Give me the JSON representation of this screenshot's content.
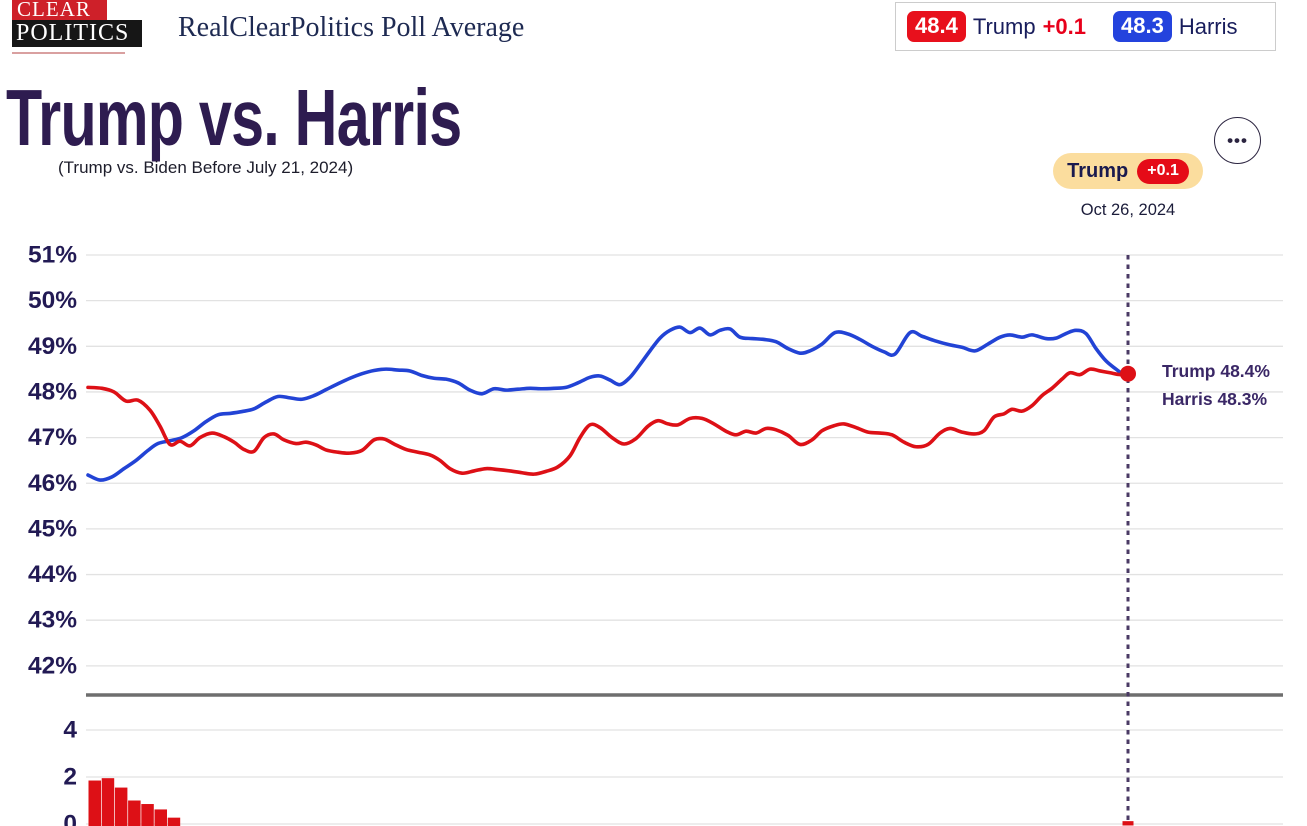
{
  "header": {
    "logo": {
      "line1": "CLEAR",
      "line2": "POLITICS"
    },
    "title": "RealClearPolitics Poll Average",
    "legend": {
      "trump": {
        "value": "48.4",
        "label": "Trump",
        "change": "+0.1"
      },
      "harris": {
        "value": "48.3",
        "label": "Harris"
      }
    }
  },
  "page": {
    "title": "Trump vs. Harris",
    "subtitle": "(Trump vs. Biden Before July 21, 2024)",
    "leader_badge": {
      "label": "Trump",
      "change": "+0.1"
    },
    "date": "Oct 26, 2024",
    "menu_icon": "•••"
  },
  "colors": {
    "trump_red": "#dd1016",
    "harris_blue": "#2243d5",
    "badge_red": "#e8101c",
    "badge_blue": "#2443dd",
    "axis_label": "#221a54",
    "gridline": "#e2e2e2",
    "separator": "#6e6e6e",
    "dotted_line": "#4a3a64",
    "leader_badge_bg": "#fbdd9e"
  },
  "chart_data": {
    "type": "line",
    "title": "Trump vs. Harris",
    "subtitle": "(Trump vs. Biden Before July 21, 2024)",
    "date_label": "Oct 26, 2024",
    "y_axis": {
      "ticks": [
        51,
        50,
        49,
        48,
        47,
        46,
        45,
        44,
        43,
        42
      ],
      "unit": "%"
    },
    "x_axis": {
      "tick_labels_visible": false
    },
    "grid": true,
    "legend_position": "top-right",
    "current_values": {
      "trump": 48.4,
      "harris": 48.3,
      "spread": "+0.1"
    },
    "end_labels": [
      {
        "text": "Trump 48.4%"
      },
      {
        "text": "Harris 48.3%"
      }
    ],
    "series": [
      {
        "name": "Harris",
        "color": "#2243d5",
        "end_value": 48.3,
        "points": [
          [
            88,
            46.18
          ],
          [
            100,
            46.07
          ],
          [
            112,
            46.14
          ],
          [
            124,
            46.32
          ],
          [
            136,
            46.5
          ],
          [
            148,
            46.72
          ],
          [
            158,
            46.87
          ],
          [
            170,
            46.93
          ],
          [
            182,
            47.0
          ],
          [
            194,
            47.15
          ],
          [
            206,
            47.35
          ],
          [
            218,
            47.5
          ],
          [
            230,
            47.53
          ],
          [
            242,
            47.57
          ],
          [
            254,
            47.63
          ],
          [
            266,
            47.78
          ],
          [
            278,
            47.9
          ],
          [
            290,
            47.87
          ],
          [
            302,
            47.84
          ],
          [
            314,
            47.92
          ],
          [
            326,
            48.05
          ],
          [
            338,
            48.18
          ],
          [
            350,
            48.3
          ],
          [
            362,
            48.4
          ],
          [
            374,
            48.47
          ],
          [
            386,
            48.5
          ],
          [
            398,
            48.48
          ],
          [
            410,
            48.46
          ],
          [
            422,
            48.36
          ],
          [
            434,
            48.3
          ],
          [
            446,
            48.28
          ],
          [
            458,
            48.2
          ],
          [
            470,
            48.04
          ],
          [
            482,
            47.96
          ],
          [
            494,
            48.07
          ],
          [
            506,
            48.04
          ],
          [
            518,
            48.06
          ],
          [
            530,
            48.08
          ],
          [
            542,
            48.07
          ],
          [
            554,
            48.08
          ],
          [
            566,
            48.1
          ],
          [
            578,
            48.2
          ],
          [
            590,
            48.32
          ],
          [
            600,
            48.35
          ],
          [
            610,
            48.26
          ],
          [
            620,
            48.16
          ],
          [
            630,
            48.32
          ],
          [
            640,
            48.6
          ],
          [
            650,
            48.9
          ],
          [
            660,
            49.18
          ],
          [
            670,
            49.35
          ],
          [
            680,
            49.42
          ],
          [
            690,
            49.3
          ],
          [
            700,
            49.4
          ],
          [
            710,
            49.25
          ],
          [
            720,
            49.35
          ],
          [
            730,
            49.38
          ],
          [
            740,
            49.2
          ],
          [
            752,
            49.17
          ],
          [
            764,
            49.15
          ],
          [
            776,
            49.1
          ],
          [
            788,
            48.95
          ],
          [
            800,
            48.85
          ],
          [
            810,
            48.9
          ],
          [
            822,
            49.05
          ],
          [
            835,
            49.3
          ],
          [
            848,
            49.27
          ],
          [
            860,
            49.15
          ],
          [
            872,
            49.0
          ],
          [
            884,
            48.88
          ],
          [
            895,
            48.83
          ],
          [
            910,
            49.3
          ],
          [
            922,
            49.22
          ],
          [
            935,
            49.12
          ],
          [
            950,
            49.03
          ],
          [
            962,
            48.98
          ],
          [
            975,
            48.9
          ],
          [
            988,
            49.05
          ],
          [
            1000,
            49.2
          ],
          [
            1010,
            49.25
          ],
          [
            1022,
            49.2
          ],
          [
            1032,
            49.25
          ],
          [
            1046,
            49.17
          ],
          [
            1056,
            49.18
          ],
          [
            1066,
            49.28
          ],
          [
            1076,
            49.35
          ],
          [
            1086,
            49.28
          ],
          [
            1096,
            48.95
          ],
          [
            1106,
            48.68
          ],
          [
            1116,
            48.5
          ],
          [
            1128,
            48.3
          ]
        ]
      },
      {
        "name": "Trump",
        "color": "#dd1016",
        "end_value": 48.4,
        "points": [
          [
            88,
            48.1
          ],
          [
            102,
            48.08
          ],
          [
            114,
            48.0
          ],
          [
            126,
            47.8
          ],
          [
            138,
            47.82
          ],
          [
            150,
            47.6
          ],
          [
            160,
            47.25
          ],
          [
            170,
            46.85
          ],
          [
            180,
            46.92
          ],
          [
            190,
            46.82
          ],
          [
            200,
            47.0
          ],
          [
            212,
            47.1
          ],
          [
            224,
            47.02
          ],
          [
            234,
            46.9
          ],
          [
            244,
            46.74
          ],
          [
            254,
            46.7
          ],
          [
            264,
            47.0
          ],
          [
            274,
            47.08
          ],
          [
            284,
            46.95
          ],
          [
            296,
            46.87
          ],
          [
            306,
            46.9
          ],
          [
            316,
            46.84
          ],
          [
            326,
            46.73
          ],
          [
            338,
            46.68
          ],
          [
            350,
            46.66
          ],
          [
            362,
            46.72
          ],
          [
            374,
            46.95
          ],
          [
            384,
            46.97
          ],
          [
            394,
            46.86
          ],
          [
            406,
            46.74
          ],
          [
            418,
            46.68
          ],
          [
            430,
            46.62
          ],
          [
            440,
            46.5
          ],
          [
            450,
            46.32
          ],
          [
            462,
            46.22
          ],
          [
            474,
            46.27
          ],
          [
            486,
            46.32
          ],
          [
            498,
            46.3
          ],
          [
            510,
            46.27
          ],
          [
            522,
            46.23
          ],
          [
            534,
            46.2
          ],
          [
            546,
            46.26
          ],
          [
            558,
            46.36
          ],
          [
            570,
            46.6
          ],
          [
            580,
            47.0
          ],
          [
            590,
            47.28
          ],
          [
            600,
            47.22
          ],
          [
            612,
            47.0
          ],
          [
            624,
            46.86
          ],
          [
            636,
            46.98
          ],
          [
            648,
            47.25
          ],
          [
            658,
            47.37
          ],
          [
            668,
            47.3
          ],
          [
            678,
            47.28
          ],
          [
            690,
            47.42
          ],
          [
            702,
            47.42
          ],
          [
            714,
            47.3
          ],
          [
            726,
            47.14
          ],
          [
            736,
            47.06
          ],
          [
            746,
            47.14
          ],
          [
            756,
            47.1
          ],
          [
            766,
            47.2
          ],
          [
            776,
            47.17
          ],
          [
            788,
            47.05
          ],
          [
            800,
            46.85
          ],
          [
            812,
            46.95
          ],
          [
            822,
            47.15
          ],
          [
            834,
            47.26
          ],
          [
            844,
            47.3
          ],
          [
            856,
            47.22
          ],
          [
            868,
            47.12
          ],
          [
            880,
            47.1
          ],
          [
            892,
            47.06
          ],
          [
            904,
            46.9
          ],
          [
            916,
            46.8
          ],
          [
            928,
            46.85
          ],
          [
            940,
            47.1
          ],
          [
            950,
            47.2
          ],
          [
            962,
            47.12
          ],
          [
            974,
            47.08
          ],
          [
            984,
            47.15
          ],
          [
            994,
            47.45
          ],
          [
            1004,
            47.52
          ],
          [
            1012,
            47.62
          ],
          [
            1022,
            47.58
          ],
          [
            1032,
            47.7
          ],
          [
            1042,
            47.92
          ],
          [
            1052,
            48.08
          ],
          [
            1062,
            48.28
          ],
          [
            1070,
            48.42
          ],
          [
            1080,
            48.38
          ],
          [
            1090,
            48.5
          ],
          [
            1100,
            48.46
          ],
          [
            1110,
            48.42
          ],
          [
            1120,
            48.38
          ],
          [
            1128,
            48.4
          ]
        ]
      }
    ],
    "marker": {
      "series": "Trump",
      "value": 48.4,
      "color": "#dd1016"
    },
    "spread": {
      "type": "bar",
      "ticks": [
        4,
        2,
        0
      ],
      "bar_color": "#dd1016",
      "bars": [
        1.85,
        1.95,
        1.55,
        1.0,
        0.85,
        0.62,
        0.27
      ],
      "current": 0.1
    }
  }
}
